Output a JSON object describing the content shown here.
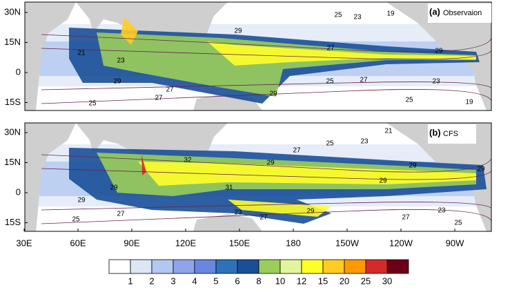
{
  "panels": [
    {
      "label": "(a)",
      "name": "Observaion",
      "contour_labels": [
        "25",
        "23",
        "19",
        "29",
        "27",
        "29",
        "21",
        "23",
        "29",
        "27",
        "29",
        "25",
        "27",
        "23",
        "25",
        "25",
        "27",
        "19"
      ]
    },
    {
      "label": "(b)",
      "name": "CFS",
      "contour_labels": [
        "21",
        "25",
        "23",
        "27",
        "32",
        "29",
        "29",
        "29",
        "29",
        "31",
        "29",
        "29",
        "27",
        "25",
        "23",
        "29",
        "27",
        "23",
        "27",
        "25"
      ]
    }
  ],
  "lat_labels": [
    "30N",
    "15N",
    "0",
    "15S"
  ],
  "lon_labels": [
    "30E",
    "60E",
    "90E",
    "120E",
    "150E",
    "180",
    "150W",
    "120W",
    "90W"
  ],
  "colorbar": {
    "levels": [
      1,
      2,
      3,
      4,
      5,
      6,
      8,
      10,
      12,
      15,
      20,
      25,
      30
    ],
    "colors": [
      "#ffffff",
      "#dbe6f7",
      "#b3c8f0",
      "#8fa5ea",
      "#6b86e0",
      "#2d72b8",
      "#1a4f98",
      "#9acd5a",
      "#e3f59c",
      "#ffff2a",
      "#ffcc22",
      "#ff9900",
      "#d62a2a",
      "#6b0016"
    ]
  }
}
